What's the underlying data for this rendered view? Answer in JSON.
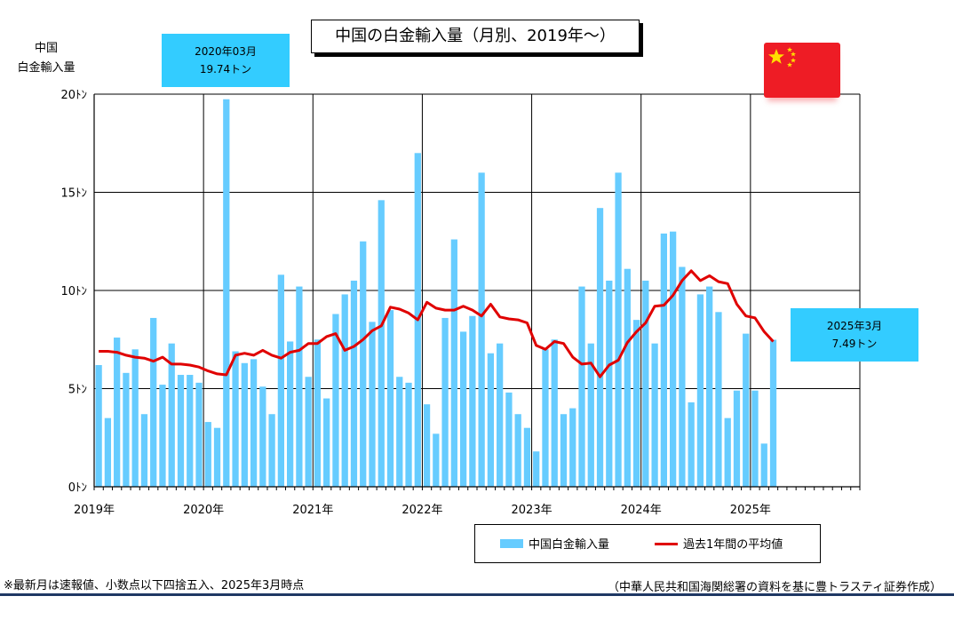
{
  "title": "中国の白金輸入量（月別、2019年～）",
  "y_title_line1": "中国",
  "y_title_line2": "白金輸入量",
  "callout_2020": {
    "line1": "2020年03月",
    "line2": "19.74トン"
  },
  "callout_2025": {
    "line1": "2025年3月",
    "line2": "7.49トン"
  },
  "legend": {
    "bar_label": "中国白金輸入量",
    "line_label": "過去1年間の平均値"
  },
  "footnote_left": "※最新月は速報値、小数点以下四捨五入、2025年3月時点",
  "footnote_right": "（中華人民共和国海関総署の資料を基に豊トラスティ証券作成）",
  "colors": {
    "bar": "#66ccff",
    "line": "#e00000",
    "callout": "#33ccff",
    "flag": "#ee1c25",
    "flag_star": "#ffde00"
  },
  "flag_icon": "china-flag-icon",
  "chart_data": {
    "type": "bar",
    "title": "中国の白金輸入量（月別、2019年～）",
    "ylabel": "中国 白金輸入量",
    "ylim": [
      0,
      20
    ],
    "y_ticks": [
      "0ﾄﾝ",
      "5ﾄﾝ",
      "10ﾄﾝ",
      "15ﾄﾝ",
      "20ﾄﾝ"
    ],
    "x_tick_labels": [
      "2019年",
      "2020年",
      "2021年",
      "2022年",
      "2023年",
      "2024年",
      "2025年"
    ],
    "x_range_months": [
      "2019-01",
      "2025-12"
    ],
    "grid": true,
    "legend_position": "bottom-right",
    "series": [
      {
        "name": "中国白金輸入量",
        "type": "bar",
        "start": "2019-01",
        "values": [
          6.2,
          3.5,
          7.6,
          5.8,
          7.0,
          3.7,
          8.6,
          5.2,
          7.3,
          5.7,
          5.7,
          5.3,
          3.3,
          3.0,
          19.74,
          6.9,
          6.3,
          6.5,
          5.1,
          3.7,
          10.8,
          7.4,
          10.2,
          5.6,
          7.5,
          4.5,
          8.8,
          9.8,
          10.5,
          12.5,
          8.4,
          14.6,
          9.0,
          5.6,
          5.3,
          17.0,
          4.2,
          2.7,
          8.6,
          12.6,
          7.9,
          8.7,
          16.0,
          6.8,
          7.3,
          4.8,
          3.7,
          3.0,
          1.8,
          7.0,
          7.5,
          3.7,
          4.0,
          10.2,
          7.3,
          14.2,
          10.5,
          16.0,
          11.1,
          8.5,
          10.5,
          7.3,
          12.9,
          13.0,
          11.2,
          4.3,
          9.8,
          10.2,
          8.9,
          3.5,
          4.9,
          7.8,
          4.9,
          2.2,
          7.49
        ]
      },
      {
        "name": "過去1年間の平均値",
        "type": "line",
        "start": "2019-01",
        "values": [
          6.9,
          6.9,
          6.85,
          6.7,
          6.6,
          6.55,
          6.4,
          6.6,
          6.25,
          6.25,
          6.2,
          6.1,
          5.9,
          5.75,
          5.7,
          6.7,
          6.8,
          6.7,
          6.95,
          6.7,
          6.55,
          6.85,
          6.95,
          7.3,
          7.3,
          7.65,
          7.8,
          6.95,
          7.15,
          7.5,
          7.95,
          8.2,
          9.15,
          9.05,
          8.85,
          8.5,
          9.4,
          9.1,
          9.0,
          9.0,
          9.2,
          9.0,
          8.7,
          9.3,
          8.65,
          8.55,
          8.5,
          8.35,
          7.2,
          7.0,
          7.4,
          7.3,
          6.6,
          6.25,
          6.3,
          5.6,
          6.2,
          6.45,
          7.35,
          7.9,
          8.35,
          9.2,
          9.25,
          9.75,
          10.5,
          11.0,
          10.5,
          10.75,
          10.45,
          10.35,
          9.3,
          8.7,
          8.6,
          7.9,
          7.4
        ]
      }
    ]
  }
}
